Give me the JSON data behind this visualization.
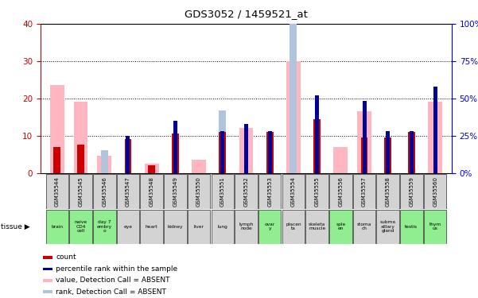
{
  "title": "GDS3052 / 1459521_at",
  "samples": [
    "GSM35544",
    "GSM35545",
    "GSM35546",
    "GSM35547",
    "GSM35548",
    "GSM35549",
    "GSM35550",
    "GSM35551",
    "GSM35552",
    "GSM35553",
    "GSM35554",
    "GSM35555",
    "GSM35556",
    "GSM35557",
    "GSM35558",
    "GSM35559",
    "GSM35560"
  ],
  "tissues": [
    "brain",
    "naive\nCD4\ncell",
    "day 7\nembry\no",
    "eye",
    "heart",
    "kidney",
    "liver",
    "lung",
    "lymph\nnode",
    "ovar\ny",
    "placen\nta",
    "skeleta\nmuscle",
    "sple\nen",
    "stoma\nch",
    "subma\nxillary\ngland",
    "testis",
    "thym\nus"
  ],
  "tissue_colors": [
    "#90EE90",
    "#90EE90",
    "#90EE90",
    "#d3d3d3",
    "#d3d3d3",
    "#d3d3d3",
    "#d3d3d3",
    "#d3d3d3",
    "#d3d3d3",
    "#90EE90",
    "#d3d3d3",
    "#d3d3d3",
    "#90EE90",
    "#d3d3d3",
    "#d3d3d3",
    "#90EE90",
    "#90EE90"
  ],
  "count_red": [
    7.0,
    7.5,
    0,
    9.0,
    2.0,
    10.5,
    0,
    11.0,
    0,
    11.0,
    0,
    14.5,
    0,
    9.5,
    9.5,
    11.0,
    0
  ],
  "rank_blue_pct": [
    0,
    0,
    0,
    25,
    0,
    35,
    0,
    28,
    33,
    28,
    0,
    52,
    0,
    48,
    28,
    28,
    58
  ],
  "value_pink": [
    23.5,
    19.0,
    4.5,
    0,
    2.5,
    0,
    3.5,
    0,
    12.0,
    0,
    30.0,
    0,
    7.0,
    16.5,
    0,
    0,
    19.0
  ],
  "rank_lightblue_pct": [
    0,
    0,
    15,
    0,
    0,
    5,
    0,
    42,
    0,
    0,
    100,
    0,
    0,
    0,
    0,
    0,
    0
  ],
  "ylim_left": [
    0,
    40
  ],
  "ylim_right": [
    0,
    100
  ],
  "yticks_left": [
    0,
    10,
    20,
    30,
    40
  ],
  "ytick_labels_right": [
    "0%",
    "25%",
    "50%",
    "75%",
    "100%"
  ],
  "bar_width": 0.6,
  "legend_items": [
    {
      "label": "count",
      "color": "#cc0000"
    },
    {
      "label": "percentile rank within the sample",
      "color": "#000099"
    },
    {
      "label": "value, Detection Call = ABSENT",
      "color": "#ffb6c1"
    },
    {
      "label": "rank, Detection Call = ABSENT",
      "color": "#b0c4de"
    }
  ],
  "axis_color_left": "#cc0000",
  "axis_color_right": "#0000cc",
  "sample_box_color": "#d3d3d3",
  "grid_yticks": [
    10,
    20,
    30
  ]
}
